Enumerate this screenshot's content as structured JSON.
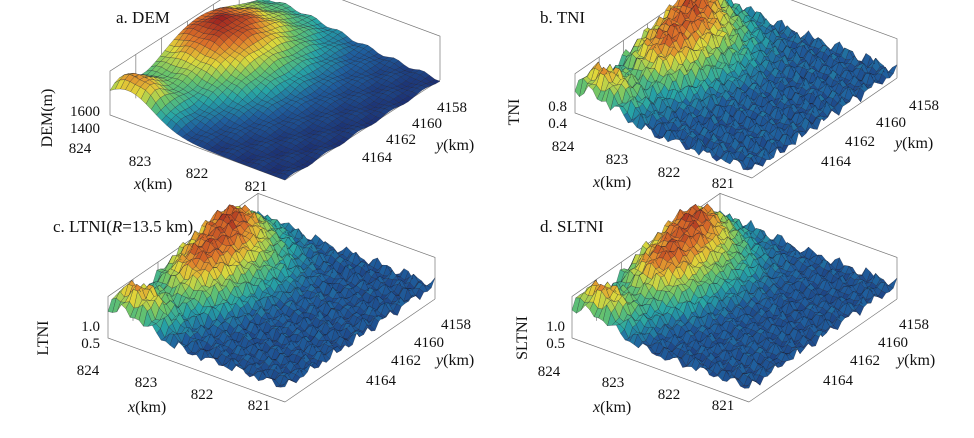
{
  "chart_data": [
    {
      "type": "surface",
      "title": "a. DEM",
      "zlabel": "DEM(m)",
      "xlabel_var": "x",
      "xlabel_unit": "(km)",
      "ylabel_var": "y",
      "ylabel_unit": "(km)",
      "x_ticks": [
        "824",
        "823",
        "822",
        "821"
      ],
      "y_ticks": [
        "4158",
        "4160",
        "4162",
        "4164"
      ],
      "z_ticks": [
        "1600",
        "1400"
      ],
      "colormap": [
        "#1c2d70",
        "#1f5f9e",
        "#27a6a6",
        "#6ac46a",
        "#e0d83a",
        "#e0762a",
        "#9a1e1e"
      ]
    },
    {
      "type": "surface",
      "title": "b. TNI",
      "zlabel": "TNI",
      "xlabel_var": "x",
      "xlabel_unit": "(km)",
      "ylabel_var": "y",
      "ylabel_unit": "(km)",
      "x_ticks": [
        "824",
        "823",
        "822",
        "821"
      ],
      "y_ticks": [
        "4158",
        "4160",
        "4162",
        "4164"
      ],
      "z_ticks": [
        "0.8",
        "0.4"
      ],
      "colormap": [
        "#1c2d70",
        "#1f5f9e",
        "#27a6a6",
        "#6ac46a",
        "#e0d83a",
        "#e0762a",
        "#9a1e1e"
      ]
    },
    {
      "type": "surface",
      "title_prefix": "c. LTNI(",
      "title_var": "R",
      "title_suffix": "=13.5 km)",
      "zlabel": "LTNI",
      "xlabel_var": "x",
      "xlabel_unit": "(km)",
      "ylabel_var": "y",
      "ylabel_unit": "(km)",
      "x_ticks": [
        "824",
        "823",
        "822",
        "821"
      ],
      "y_ticks": [
        "4158",
        "4160",
        "4162",
        "4164"
      ],
      "z_ticks": [
        "1.0",
        "0.5"
      ],
      "colormap": [
        "#1c2d70",
        "#1f5f9e",
        "#27a6a6",
        "#6ac46a",
        "#e0d83a",
        "#e0762a",
        "#9a1e1e"
      ]
    },
    {
      "type": "surface",
      "title": "d. SLTNI",
      "zlabel": "SLTNI",
      "xlabel_var": "x",
      "xlabel_unit": "(km)",
      "ylabel_var": "y",
      "ylabel_unit": "(km)",
      "x_ticks": [
        "824",
        "823",
        "822",
        "821"
      ],
      "y_ticks": [
        "4158",
        "4160",
        "4162",
        "4164"
      ],
      "z_ticks": [
        "1.0",
        "0.5"
      ],
      "colormap": [
        "#1c2d70",
        "#1f5f9e",
        "#27a6a6",
        "#6ac46a",
        "#e0d83a",
        "#e0762a",
        "#9a1e1e"
      ]
    }
  ]
}
